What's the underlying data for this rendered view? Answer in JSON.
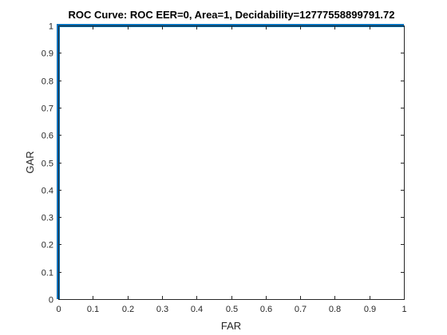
{
  "chart_data": {
    "type": "line",
    "title": "ROC Curve: ROC   EER=0,   Area=1,   Decidability=12777558899791.72",
    "xlabel": "FAR",
    "ylabel": "GAR",
    "xlim": [
      0,
      1
    ],
    "ylim": [
      0,
      1
    ],
    "x_ticks": [
      "0",
      "0.1",
      "0.2",
      "0.3",
      "0.4",
      "0.5",
      "0.6",
      "0.7",
      "0.8",
      "0.9",
      "1"
    ],
    "y_ticks": [
      "0",
      "0.1",
      "0.2",
      "0.3",
      "0.4",
      "0.5",
      "0.6",
      "0.7",
      "0.8",
      "0.9",
      "1"
    ],
    "grid": false,
    "box": true,
    "series": [
      {
        "color": "#0072bd",
        "x": [
          0,
          0,
          1
        ],
        "y": [
          0,
          1,
          1
        ]
      }
    ]
  }
}
